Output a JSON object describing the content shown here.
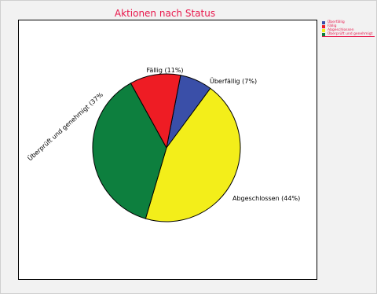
{
  "chart_data": {
    "type": "pie",
    "title": "Aktionen nach Status",
    "slices": [
      {
        "name": "Überfällig",
        "label": "Überfällig (7%)",
        "value": 7,
        "color": "#3a4fa8"
      },
      {
        "name": "Abgeschlossen",
        "label": "Abgeschlossen (44%)",
        "value": 44,
        "color": "#f3ee1a"
      },
      {
        "name": "Überprüft und genehmigt",
        "label": "Überprüft und genehmigt (37%",
        "value": 37,
        "color": "#0d7f3e"
      },
      {
        "name": "Fällig",
        "label": "Fällig (11%)",
        "value": 11,
        "color": "#ee1c24"
      }
    ],
    "legend": {
      "placement": "top-right",
      "entries": [
        {
          "label": "Überfällig",
          "color": "#3a4fa8"
        },
        {
          "label": "Fällig",
          "color": "#ee1c24"
        },
        {
          "label": "Abgeschlossen",
          "color": "#f3ee1a"
        },
        {
          "label": "Überprüft und genehmigt",
          "color": "#0d7f3e"
        }
      ]
    }
  }
}
